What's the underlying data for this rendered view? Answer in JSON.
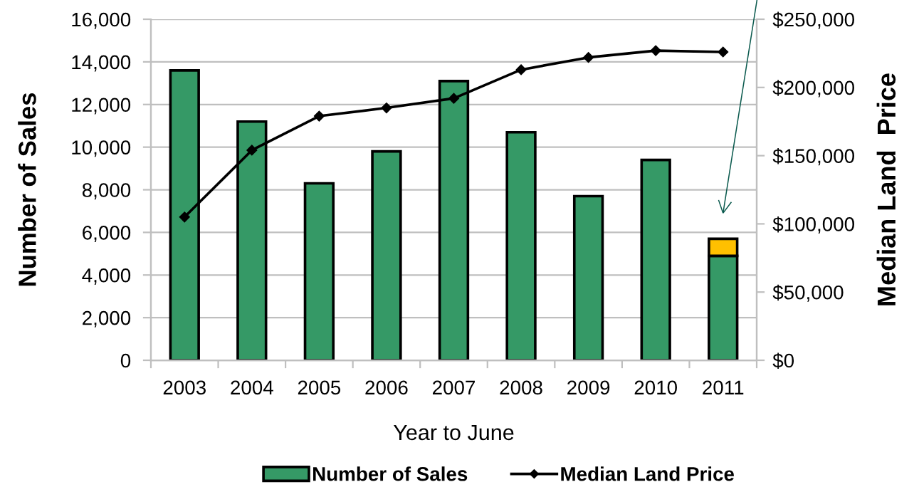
{
  "chart_data": {
    "type": "bar",
    "stacked": true,
    "categories": [
      "2003",
      "2004",
      "2005",
      "2006",
      "2007",
      "2008",
      "2009",
      "2010",
      "2011"
    ],
    "series": [
      {
        "name": "Number of Sales",
        "color": "#359966",
        "values": [
          13600,
          11200,
          8300,
          9800,
          13100,
          10700,
          7700,
          9400,
          4900
        ]
      },
      {
        "color": "#ffc000",
        "values": [
          null,
          null,
          null,
          null,
          null,
          null,
          null,
          null,
          800
        ]
      },
      {
        "name": "Median Land Price",
        "type": "line",
        "axis": "y2",
        "color": "#000000",
        "values": [
          105000,
          154000,
          179000,
          185000,
          192000,
          213000,
          222000,
          227000,
          226000
        ]
      }
    ],
    "xlabel": "Year to June",
    "ylabel": "Number of Sales",
    "y2label": "Median Land  Price",
    "ylim": [
      0,
      16000
    ],
    "yticks": [
      {
        "value": 0,
        "label": "0"
      },
      {
        "value": 2000,
        "label": "2,000"
      },
      {
        "value": 4000,
        "label": "4,000"
      },
      {
        "value": 6000,
        "label": "6,000"
      },
      {
        "value": 8000,
        "label": "8,000"
      },
      {
        "value": 10000,
        "label": "10,000"
      },
      {
        "value": 12000,
        "label": "12,000"
      },
      {
        "value": 14000,
        "label": "14,000"
      },
      {
        "value": 16000,
        "label": "16,000"
      }
    ],
    "y2lim": [
      0,
      250000
    ],
    "y2ticks": [
      {
        "value": 0,
        "label": "$0"
      },
      {
        "value": 50000,
        "label": "$50,000"
      },
      {
        "value": 100000,
        "label": "$100,000"
      },
      {
        "value": 150000,
        "label": "$150,000"
      },
      {
        "value": 200000,
        "label": "$200,000"
      },
      {
        "value": 250000,
        "label": "$250,000"
      }
    ],
    "grid": "y",
    "legend": "bottom",
    "marker": "diamond",
    "line_style": "solid"
  }
}
